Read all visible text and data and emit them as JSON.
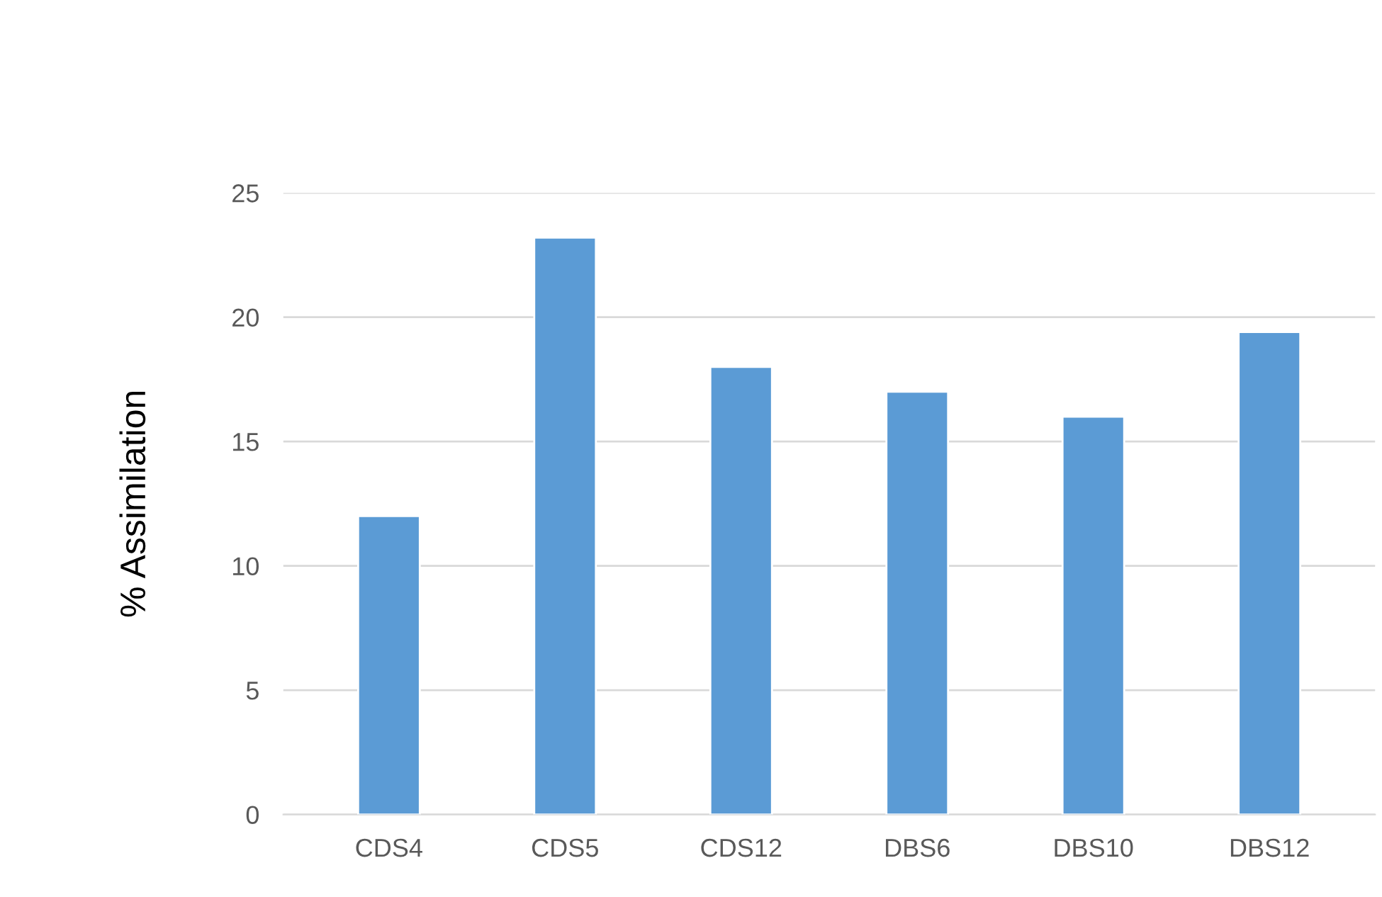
{
  "chart_data": {
    "type": "bar",
    "ylabel": "% Assimilation",
    "categories": [
      "CDS4",
      "CDS5",
      "CDS12",
      "DBS6",
      "DBS10",
      "DBS12"
    ],
    "values": [
      12,
      23.2,
      18,
      17,
      16,
      19.4
    ],
    "color": "#5b9bd5",
    "ylim": [
      0,
      25
    ],
    "yticks": [
      0,
      5,
      10,
      15,
      20,
      25
    ],
    "grid": "y"
  }
}
